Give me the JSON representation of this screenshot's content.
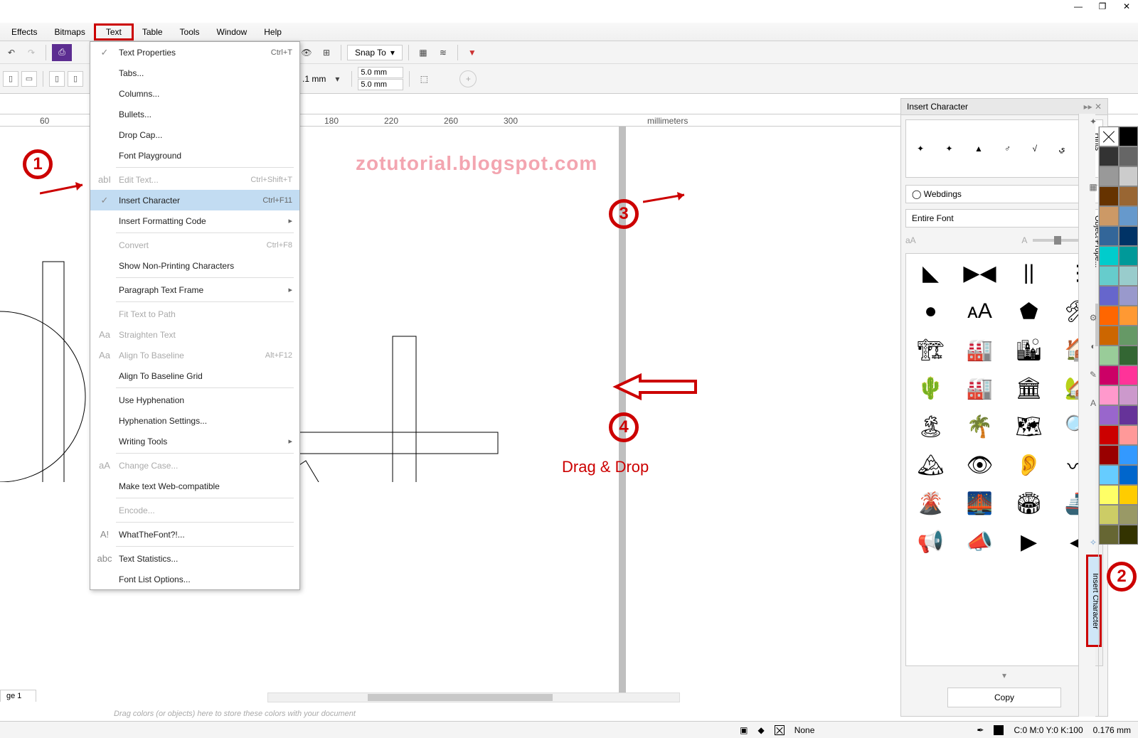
{
  "window": {
    "minimize": "—",
    "maximize": "❐",
    "close": "✕"
  },
  "menubar": {
    "items": [
      "Effects",
      "Bitmaps",
      "Text",
      "Table",
      "Tools",
      "Window",
      "Help"
    ],
    "active": "Text"
  },
  "toolbar": {
    "snap_label": "Snap To",
    "mm1": "5.0 mm",
    "mm2": "5.0 mm",
    "units": ".1 mm"
  },
  "ruler": {
    "marks": [
      60,
      180,
      220,
      260,
      300
    ],
    "unit": "millimeters"
  },
  "textmenu": {
    "groups": [
      [
        {
          "icon": "✓",
          "label": "Text Properties",
          "shortcut": "Ctrl+T",
          "dis": false
        },
        {
          "icon": "",
          "label": "Tabs...",
          "shortcut": "",
          "dis": false
        },
        {
          "icon": "",
          "label": "Columns...",
          "shortcut": "",
          "dis": false
        },
        {
          "icon": "",
          "label": "Bullets...",
          "shortcut": "",
          "dis": false
        },
        {
          "icon": "",
          "label": "Drop Cap...",
          "shortcut": "",
          "dis": false
        },
        {
          "icon": "",
          "label": "Font Playground",
          "shortcut": "",
          "dis": false
        }
      ],
      [
        {
          "icon": "abI",
          "label": "Edit Text...",
          "shortcut": "Ctrl+Shift+T",
          "dis": true
        },
        {
          "icon": "✓",
          "label": "Insert Character",
          "shortcut": "Ctrl+F11",
          "dis": false,
          "hl": true
        },
        {
          "icon": "",
          "label": "Insert Formatting Code",
          "shortcut": "▸",
          "dis": false
        }
      ],
      [
        {
          "icon": "",
          "label": "Convert",
          "shortcut": "Ctrl+F8",
          "dis": true
        },
        {
          "icon": "",
          "label": "Show Non-Printing Characters",
          "shortcut": "",
          "dis": false
        }
      ],
      [
        {
          "icon": "",
          "label": "Paragraph Text Frame",
          "shortcut": "▸",
          "dis": false
        }
      ],
      [
        {
          "icon": "",
          "label": "Fit Text to Path",
          "shortcut": "",
          "dis": true
        },
        {
          "icon": "Aa",
          "label": "Straighten Text",
          "shortcut": "",
          "dis": true
        },
        {
          "icon": "Aa",
          "label": "Align To Baseline",
          "shortcut": "Alt+F12",
          "dis": true
        },
        {
          "icon": "",
          "label": "Align To Baseline Grid",
          "shortcut": "",
          "dis": false
        }
      ],
      [
        {
          "icon": "",
          "label": "Use Hyphenation",
          "shortcut": "",
          "dis": false
        },
        {
          "icon": "",
          "label": "Hyphenation Settings...",
          "shortcut": "",
          "dis": false
        },
        {
          "icon": "",
          "label": "Writing Tools",
          "shortcut": "▸",
          "dis": false
        }
      ],
      [
        {
          "icon": "aA",
          "label": "Change Case...",
          "shortcut": "",
          "dis": true
        },
        {
          "icon": "",
          "label": "Make text Web-compatible",
          "shortcut": "",
          "dis": false
        }
      ],
      [
        {
          "icon": "",
          "label": "Encode...",
          "shortcut": "",
          "dis": true
        }
      ],
      [
        {
          "icon": "A!",
          "label": "WhatTheFont?!...",
          "shortcut": "",
          "dis": false
        }
      ],
      [
        {
          "icon": "abc",
          "label": "Text Statistics...",
          "shortcut": "",
          "dis": false
        },
        {
          "icon": "",
          "label": "Font List Options...",
          "shortcut": "",
          "dis": false
        }
      ]
    ]
  },
  "docker": {
    "title": "Insert Character",
    "preview": [
      "✦",
      "✦",
      "▲",
      "♂",
      "√",
      "ي",
      "–"
    ],
    "font": "Webdings",
    "range": "Entire Font",
    "grid": [
      "◣",
      "▶◀",
      "||",
      "⋮",
      "●",
      "ᴀA",
      "⬟",
      "🛠",
      "🏗",
      "🏭",
      "🏙",
      "🏠",
      "🌵",
      "🏭",
      "🏛",
      "🏡",
      "🏝",
      "🌴",
      "🗺",
      "🔍",
      "🏔",
      "👁",
      "👂",
      "〰",
      "🌋",
      "🌉",
      "🏟",
      "🚢",
      "📢",
      "📣",
      "▶",
      "◀"
    ],
    "copy": "Copy"
  },
  "side_tabs": {
    "hints": "Hints",
    "props": "Object Prope...",
    "ic": "Insert Character"
  },
  "palette": {
    "colors": [
      "none",
      "#000000",
      "#333333",
      "#666666",
      "#999999",
      "#cccccc",
      "#663300",
      "#996633",
      "#cc9966",
      "#6699cc",
      "#336699",
      "#003366",
      "#00cccc",
      "#009999",
      "#66cccc",
      "#99cccc",
      "#6666cc",
      "#9999cc",
      "#ff6600",
      "#ff9933",
      "#cc6600",
      "#669966",
      "#99cc99",
      "#336633",
      "#cc0066",
      "#ff3399",
      "#ff99cc",
      "#cc99cc",
      "#9966cc",
      "#663399",
      "#cc0000",
      "#ff9999",
      "#990000",
      "#3399ff",
      "#66ccff",
      "#0066cc",
      "#ffff66",
      "#ffcc00",
      "#cccc66",
      "#999966",
      "#666633",
      "#333300"
    ]
  },
  "status": {
    "fill_label": "None",
    "color": "C:0 M:0 Y:0 K:100",
    "outline": "0.176 mm"
  },
  "page_tab": "ge 1",
  "hint": "Drag colors (or objects) here to store these colors with your document",
  "annotations": {
    "n1": "1",
    "n2": "2",
    "n3": "3",
    "n4": "4",
    "drag": "Drag & Drop",
    "watermark": "zotutorial.blogspot.com"
  }
}
